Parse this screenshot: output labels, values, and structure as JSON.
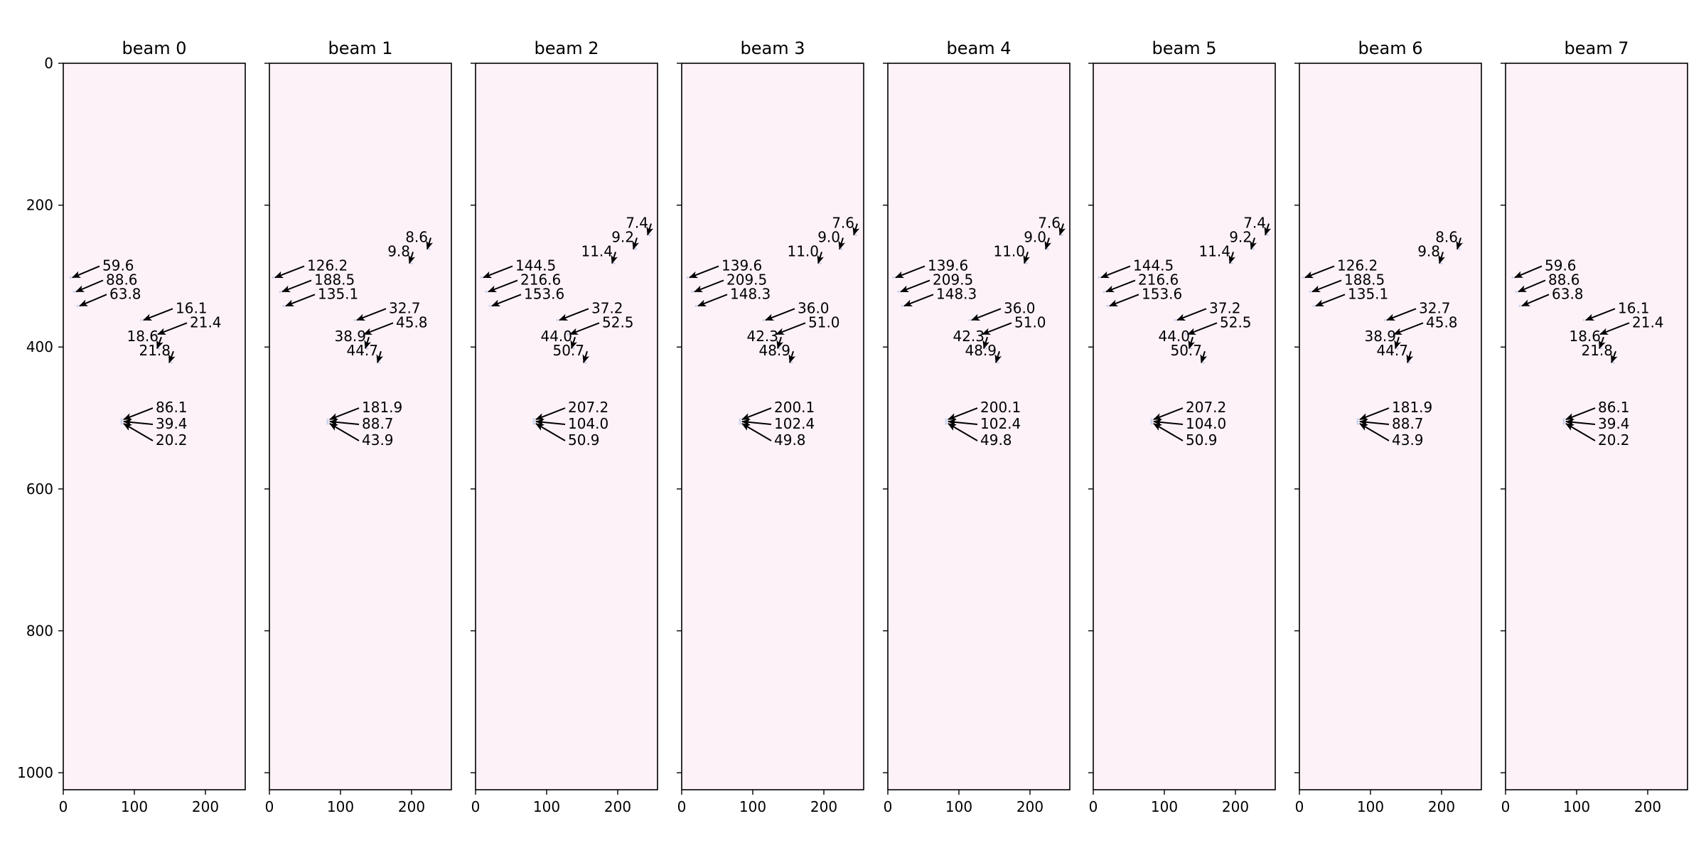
{
  "chart_data": {
    "type": "scatter",
    "description_units": "image-row-vs-column heatmap panels with annotated points",
    "xlim": [
      0,
      256
    ],
    "ylim": [
      1024,
      0
    ],
    "xticks": [
      0,
      100,
      200
    ],
    "yticks": [
      0,
      200,
      400,
      600,
      800,
      1000
    ],
    "panel_bg": "#fdf2f8",
    "arrow_color": "#000000",
    "panels": [
      {
        "title": "beam 0",
        "annotations": [
          {
            "x": 10,
            "y": 302,
            "label": "59.6",
            "tx": 55,
            "ty": 292
          },
          {
            "x": 15,
            "y": 322,
            "label": "88.6",
            "tx": 60,
            "ty": 312
          },
          {
            "x": 20,
            "y": 342,
            "label": "63.8",
            "tx": 65,
            "ty": 332
          },
          {
            "x": 110,
            "y": 362,
            "label": "16.1",
            "tx": 158,
            "ty": 352
          },
          {
            "x": 130,
            "y": 382,
            "label": "21.4",
            "tx": 178,
            "ty": 372
          },
          {
            "x": 135,
            "y": 402,
            "label": "18.6",
            "tx": 88,
            "ty": 392
          },
          {
            "x": 152,
            "y": 422,
            "label": "21.8",
            "tx": 105,
            "ty": 412
          },
          {
            "x": 82,
            "y": 502,
            "label": "86.1",
            "tx": 130,
            "ty": 492
          },
          {
            "x": 82,
            "y": 505,
            "label": "39.4",
            "tx": 130,
            "ty": 515
          },
          {
            "x": 82,
            "y": 508,
            "label": "20.2",
            "tx": 130,
            "ty": 538
          }
        ]
      },
      {
        "title": "beam 1",
        "annotations": [
          {
            "x": 225,
            "y": 262,
            "label": "8.6",
            "tx": 177,
            "ty": 252
          },
          {
            "x": 200,
            "y": 282,
            "label": "9.8",
            "tx": 152,
            "ty": 272
          },
          {
            "x": 5,
            "y": 302,
            "label": "126.2",
            "tx": 53,
            "ty": 292
          },
          {
            "x": 15,
            "y": 322,
            "label": "188.5",
            "tx": 63,
            "ty": 312
          },
          {
            "x": 20,
            "y": 342,
            "label": "135.1",
            "tx": 68,
            "ty": 332
          },
          {
            "x": 120,
            "y": 362,
            "label": "32.7",
            "tx": 168,
            "ty": 352
          },
          {
            "x": 130,
            "y": 382,
            "label": "45.8",
            "tx": 178,
            "ty": 372
          },
          {
            "x": 138,
            "y": 402,
            "label": "38.9",
            "tx": 90,
            "ty": 392
          },
          {
            "x": 155,
            "y": 422,
            "label": "44.7",
            "tx": 107,
            "ty": 412
          },
          {
            "x": 82,
            "y": 502,
            "label": "181.9",
            "tx": 130,
            "ty": 492
          },
          {
            "x": 82,
            "y": 505,
            "label": "88.7",
            "tx": 130,
            "ty": 515
          },
          {
            "x": 82,
            "y": 508,
            "label": "43.9",
            "tx": 130,
            "ty": 538
          }
        ]
      },
      {
        "title": "beam 2",
        "annotations": [
          {
            "x": 245,
            "y": 242,
            "label": "7.4",
            "tx": 197,
            "ty": 232
          },
          {
            "x": 225,
            "y": 262,
            "label": "9.2",
            "tx": 177,
            "ty": 252
          },
          {
            "x": 195,
            "y": 282,
            "label": "11.4",
            "tx": 147,
            "ty": 272
          },
          {
            "x": 8,
            "y": 302,
            "label": "144.5",
            "tx": 56,
            "ty": 292
          },
          {
            "x": 15,
            "y": 322,
            "label": "216.6",
            "tx": 63,
            "ty": 312
          },
          {
            "x": 20,
            "y": 342,
            "label": "153.6",
            "tx": 68,
            "ty": 332
          },
          {
            "x": 115,
            "y": 362,
            "label": "37.2",
            "tx": 163,
            "ty": 352
          },
          {
            "x": 130,
            "y": 382,
            "label": "52.5",
            "tx": 178,
            "ty": 372
          },
          {
            "x": 138,
            "y": 402,
            "label": "44.0",
            "tx": 90,
            "ty": 392
          },
          {
            "x": 155,
            "y": 422,
            "label": "50.7",
            "tx": 107,
            "ty": 412
          },
          {
            "x": 82,
            "y": 502,
            "label": "207.2",
            "tx": 130,
            "ty": 492
          },
          {
            "x": 82,
            "y": 505,
            "label": "104.0",
            "tx": 130,
            "ty": 515
          },
          {
            "x": 82,
            "y": 508,
            "label": "50.9",
            "tx": 130,
            "ty": 538
          }
        ]
      },
      {
        "title": "beam 3",
        "annotations": [
          {
            "x": 245,
            "y": 242,
            "label": "7.6",
            "tx": 197,
            "ty": 232
          },
          {
            "x": 225,
            "y": 262,
            "label": "9.0",
            "tx": 177,
            "ty": 252
          },
          {
            "x": 195,
            "y": 282,
            "label": "11.0",
            "tx": 147,
            "ty": 272
          },
          {
            "x": 8,
            "y": 302,
            "label": "139.6",
            "tx": 56,
            "ty": 292
          },
          {
            "x": 15,
            "y": 322,
            "label": "209.5",
            "tx": 63,
            "ty": 312
          },
          {
            "x": 20,
            "y": 342,
            "label": "148.3",
            "tx": 68,
            "ty": 332
          },
          {
            "x": 115,
            "y": 362,
            "label": "36.0",
            "tx": 163,
            "ty": 352
          },
          {
            "x": 130,
            "y": 382,
            "label": "51.0",
            "tx": 178,
            "ty": 372
          },
          {
            "x": 138,
            "y": 402,
            "label": "42.3",
            "tx": 90,
            "ty": 392
          },
          {
            "x": 155,
            "y": 422,
            "label": "48.9",
            "tx": 107,
            "ty": 412
          },
          {
            "x": 82,
            "y": 502,
            "label": "200.1",
            "tx": 130,
            "ty": 492
          },
          {
            "x": 82,
            "y": 505,
            "label": "102.4",
            "tx": 130,
            "ty": 515
          },
          {
            "x": 82,
            "y": 508,
            "label": "49.8",
            "tx": 130,
            "ty": 538
          }
        ]
      },
      {
        "title": "beam 4",
        "annotations": [
          {
            "x": 245,
            "y": 242,
            "label": "7.6",
            "tx": 197,
            "ty": 232
          },
          {
            "x": 225,
            "y": 262,
            "label": "9.0",
            "tx": 177,
            "ty": 252
          },
          {
            "x": 195,
            "y": 282,
            "label": "11.0",
            "tx": 147,
            "ty": 272
          },
          {
            "x": 8,
            "y": 302,
            "label": "139.6",
            "tx": 56,
            "ty": 292
          },
          {
            "x": 15,
            "y": 322,
            "label": "209.5",
            "tx": 63,
            "ty": 312
          },
          {
            "x": 20,
            "y": 342,
            "label": "148.3",
            "tx": 68,
            "ty": 332
          },
          {
            "x": 115,
            "y": 362,
            "label": "36.0",
            "tx": 163,
            "ty": 352
          },
          {
            "x": 130,
            "y": 382,
            "label": "51.0",
            "tx": 178,
            "ty": 372
          },
          {
            "x": 138,
            "y": 402,
            "label": "42.3",
            "tx": 90,
            "ty": 392
          },
          {
            "x": 155,
            "y": 422,
            "label": "48.9",
            "tx": 107,
            "ty": 412
          },
          {
            "x": 82,
            "y": 502,
            "label": "200.1",
            "tx": 130,
            "ty": 492
          },
          {
            "x": 82,
            "y": 505,
            "label": "102.4",
            "tx": 130,
            "ty": 515
          },
          {
            "x": 82,
            "y": 508,
            "label": "49.8",
            "tx": 130,
            "ty": 538
          }
        ]
      },
      {
        "title": "beam 5",
        "annotations": [
          {
            "x": 245,
            "y": 242,
            "label": "7.4",
            "tx": 197,
            "ty": 232
          },
          {
            "x": 225,
            "y": 262,
            "label": "9.2",
            "tx": 177,
            "ty": 252
          },
          {
            "x": 195,
            "y": 282,
            "label": "11.4",
            "tx": 147,
            "ty": 272
          },
          {
            "x": 8,
            "y": 302,
            "label": "144.5",
            "tx": 56,
            "ty": 292
          },
          {
            "x": 15,
            "y": 322,
            "label": "216.6",
            "tx": 63,
            "ty": 312
          },
          {
            "x": 20,
            "y": 342,
            "label": "153.6",
            "tx": 68,
            "ty": 332
          },
          {
            "x": 115,
            "y": 362,
            "label": "37.2",
            "tx": 163,
            "ty": 352
          },
          {
            "x": 130,
            "y": 382,
            "label": "52.5",
            "tx": 178,
            "ty": 372
          },
          {
            "x": 138,
            "y": 402,
            "label": "44.0",
            "tx": 90,
            "ty": 392
          },
          {
            "x": 155,
            "y": 422,
            "label": "50.7",
            "tx": 107,
            "ty": 412
          },
          {
            "x": 82,
            "y": 502,
            "label": "207.2",
            "tx": 130,
            "ty": 492
          },
          {
            "x": 82,
            "y": 505,
            "label": "104.0",
            "tx": 130,
            "ty": 515
          },
          {
            "x": 82,
            "y": 508,
            "label": "50.9",
            "tx": 130,
            "ty": 538
          }
        ]
      },
      {
        "title": "beam 6",
        "annotations": [
          {
            "x": 225,
            "y": 262,
            "label": "8.6",
            "tx": 177,
            "ty": 252
          },
          {
            "x": 200,
            "y": 282,
            "label": "9.8",
            "tx": 152,
            "ty": 272
          },
          {
            "x": 5,
            "y": 302,
            "label": "126.2",
            "tx": 53,
            "ty": 292
          },
          {
            "x": 15,
            "y": 322,
            "label": "188.5",
            "tx": 63,
            "ty": 312
          },
          {
            "x": 20,
            "y": 342,
            "label": "135.1",
            "tx": 68,
            "ty": 332
          },
          {
            "x": 120,
            "y": 362,
            "label": "32.7",
            "tx": 168,
            "ty": 352
          },
          {
            "x": 130,
            "y": 382,
            "label": "45.8",
            "tx": 178,
            "ty": 372
          },
          {
            "x": 138,
            "y": 402,
            "label": "38.9",
            "tx": 90,
            "ty": 392
          },
          {
            "x": 155,
            "y": 422,
            "label": "44.7",
            "tx": 107,
            "ty": 412
          },
          {
            "x": 82,
            "y": 502,
            "label": "181.9",
            "tx": 130,
            "ty": 492
          },
          {
            "x": 82,
            "y": 505,
            "label": "88.7",
            "tx": 130,
            "ty": 515
          },
          {
            "x": 82,
            "y": 508,
            "label": "43.9",
            "tx": 130,
            "ty": 538
          }
        ]
      },
      {
        "title": "beam 7",
        "annotations": [
          {
            "x": 10,
            "y": 302,
            "label": "59.6",
            "tx": 55,
            "ty": 292
          },
          {
            "x": 15,
            "y": 322,
            "label": "88.6",
            "tx": 60,
            "ty": 312
          },
          {
            "x": 20,
            "y": 342,
            "label": "63.8",
            "tx": 65,
            "ty": 332
          },
          {
            "x": 110,
            "y": 362,
            "label": "16.1",
            "tx": 158,
            "ty": 352
          },
          {
            "x": 130,
            "y": 382,
            "label": "21.4",
            "tx": 178,
            "ty": 372
          },
          {
            "x": 135,
            "y": 402,
            "label": "18.6",
            "tx": 88,
            "ty": 392
          },
          {
            "x": 152,
            "y": 422,
            "label": "21.8",
            "tx": 105,
            "ty": 412
          },
          {
            "x": 82,
            "y": 502,
            "label": "86.1",
            "tx": 130,
            "ty": 492
          },
          {
            "x": 82,
            "y": 505,
            "label": "39.4",
            "tx": 130,
            "ty": 515
          },
          {
            "x": 82,
            "y": 508,
            "label": "20.2",
            "tx": 130,
            "ty": 538
          }
        ]
      }
    ]
  }
}
